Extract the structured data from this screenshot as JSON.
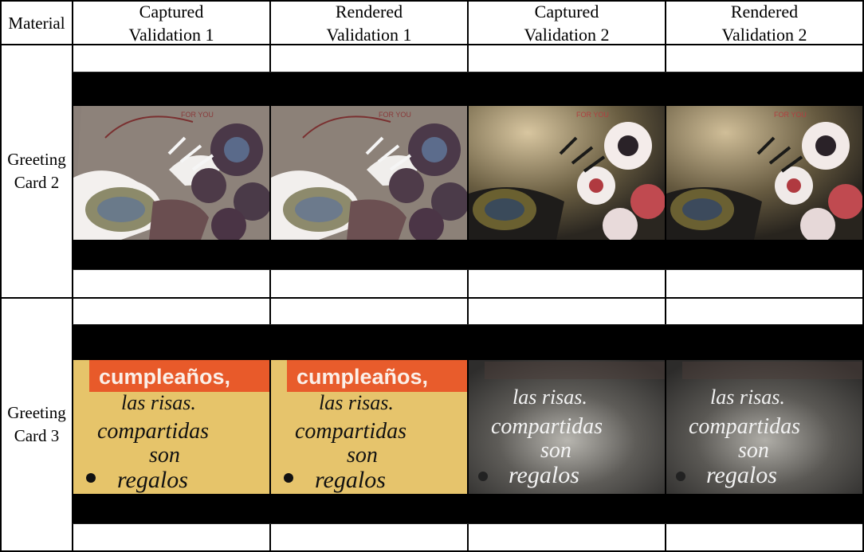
{
  "table": {
    "headers": [
      {
        "line1": "Material",
        "line2": ""
      },
      {
        "line1": "Captured",
        "line2": "Validation 1"
      },
      {
        "line1": "Rendered",
        "line2": "Validation 1"
      },
      {
        "line1": "Captured",
        "line2": "Validation 2"
      },
      {
        "line1": "Rendered",
        "line2": "Validation 2"
      }
    ],
    "rows": [
      {
        "label_line1": "Greeting",
        "label_line2": "Card 2"
      },
      {
        "label_line1": "Greeting",
        "label_line2": "Card 3"
      }
    ]
  },
  "card2": {
    "print_text": "FOR YOU"
  },
  "card3": {
    "banner_text": "cumpleaños,",
    "script_lines": [
      "las risas.",
      "compartidas",
      "son",
      "regalos"
    ]
  }
}
